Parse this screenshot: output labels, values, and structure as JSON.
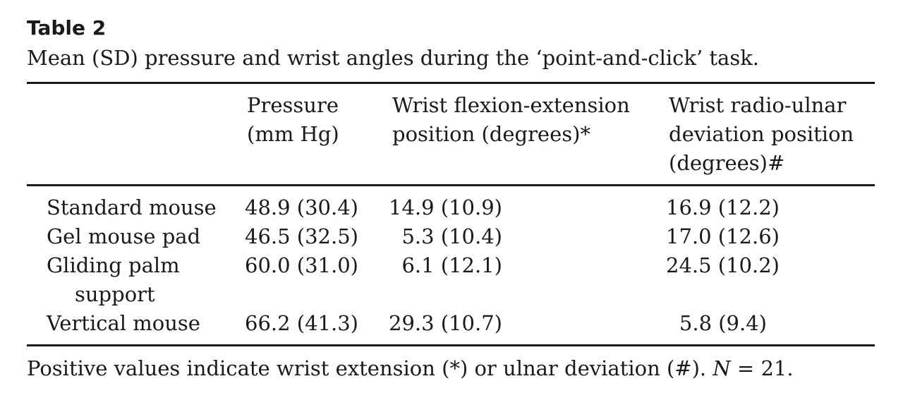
{
  "table": {
    "label": "Table 2",
    "caption": "Mean (SD) pressure and wrist angles during the ‘point-and-click’ task.",
    "headers": {
      "col1_line1": "Pressure",
      "col1_line2": "(mm Hg)",
      "col2_line1": "Wrist flexion-extension",
      "col2_line2": "position (degrees)*",
      "col3_line1": "Wrist radio-ulnar",
      "col3_line2": "deviation position",
      "col3_line3": "(degrees)#"
    },
    "rows": [
      {
        "label": "Standard mouse",
        "pressure": "48.9 (30.4)",
        "flexion": "14.9 (10.9)",
        "deviation": "16.9 (12.2)"
      },
      {
        "label": "Gel mouse pad",
        "pressure": "46.5 (32.5)",
        "flexion": "5.3 (10.4)",
        "deviation": "17.0 (12.6)"
      },
      {
        "label": "Gliding palm",
        "label_cont": "support",
        "pressure": "60.0 (31.0)",
        "flexion": "6.1 (12.1)",
        "deviation": "24.5 (10.2)"
      },
      {
        "label": "Vertical mouse",
        "pressure": "66.2 (41.3)",
        "flexion": "29.3 (10.7)",
        "deviation": "5.8 (9.4)"
      }
    ],
    "footnote": {
      "text_before": "Positive values indicate wrist extension (*) or ulnar deviation (#). ",
      "n_symbol": "N",
      "text_after": " = 21."
    }
  }
}
